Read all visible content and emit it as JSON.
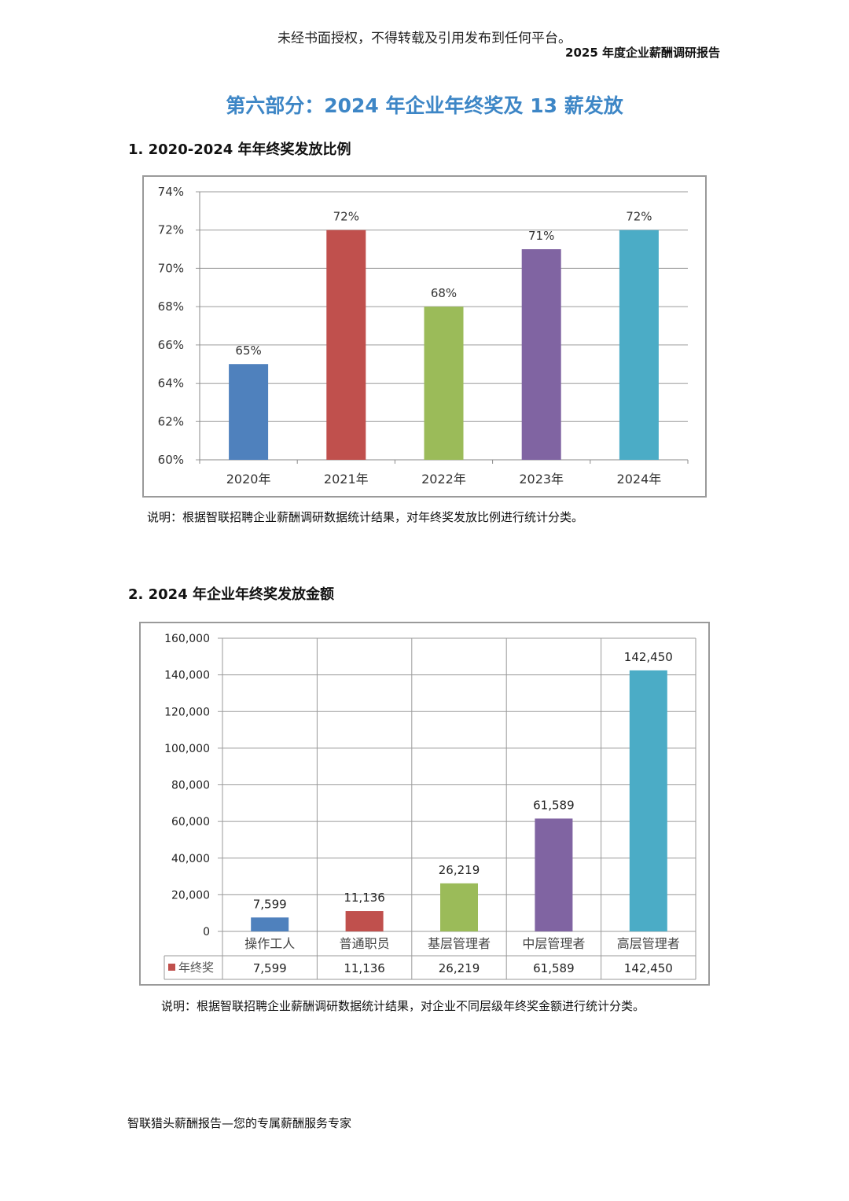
{
  "header": {
    "notice": "未经书面授权，不得转载及引用发布到任何平台。",
    "report_title": "2025 年度企业薪酬调研报告"
  },
  "section": {
    "title": "第六部分：2024 年企业年终奖及 13 薪发放"
  },
  "chart1": {
    "heading": "1.  2020-2024 年年终奖发放比例",
    "note": "说明：根据智联招聘企业薪酬调研数据统计结果，对年终奖发放比例进行统计分类。"
  },
  "chart2": {
    "heading": "2.  2024 年企业年终奖发放金额",
    "note": "说明：根据智联招聘企业薪酬调研数据统计结果，对企业不同层级年终奖金额进行统计分类。",
    "table_row_label": "年终奖",
    "table_values": [
      "7,599",
      "11,136",
      "26,219",
      "61,589",
      "142,450"
    ]
  },
  "footer": {
    "text": "智联猎头薪酬报告—您的专属薪酬服务专家"
  },
  "chart_data": [
    {
      "type": "bar",
      "categories": [
        "2020年",
        "2021年",
        "2022年",
        "2023年",
        "2024年"
      ],
      "values": [
        65,
        72,
        68,
        71,
        72
      ],
      "data_labels": [
        "65%",
        "72%",
        "68%",
        "71%",
        "72%"
      ],
      "colors": [
        "#4f81bd",
        "#c0504d",
        "#9bbb59",
        "#8064a2",
        "#4bacc6"
      ],
      "ylim": [
        60,
        74
      ],
      "yticks": [
        "60%",
        "62%",
        "64%",
        "66%",
        "68%",
        "70%",
        "72%",
        "74%"
      ],
      "grid": true
    },
    {
      "type": "bar",
      "categories": [
        "操作工人",
        "普通职员",
        "基层管理者",
        "中层管理者",
        "高层管理者"
      ],
      "series": [
        {
          "name": "年终奖",
          "values": [
            7599,
            11136,
            26219,
            61589,
            142450
          ]
        }
      ],
      "data_labels": [
        "7,599",
        "11,136",
        "26,219",
        "61,589",
        "142,450"
      ],
      "colors": [
        "#4f81bd",
        "#c0504d",
        "#9bbb59",
        "#8064a2",
        "#4bacc6"
      ],
      "legend_color": "#c0504d",
      "ylim": [
        0,
        160000
      ],
      "yticks": [
        "0",
        "20,000",
        "40,000",
        "60,000",
        "80,000",
        "100,000",
        "120,000",
        "140,000",
        "160,000"
      ],
      "grid": true
    }
  ]
}
